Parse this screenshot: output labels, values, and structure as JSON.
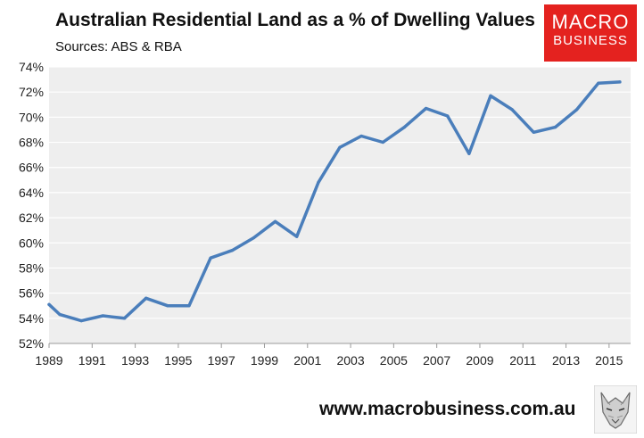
{
  "header": {
    "title": "Australian Residential Land as a % of Dwelling Values",
    "subtitle": "Sources: ABS & RBA"
  },
  "logo": {
    "line1": "MACRO",
    "line2": "BUSINESS",
    "color": "#e4221f"
  },
  "footer": {
    "url": "www.macrobusiness.com.au",
    "icon": "wolf-logo-icon"
  },
  "chart_data": {
    "type": "line",
    "title": "Australian Residential Land as a % of Dwelling Values",
    "subtitle": "Sources: ABS & RBA",
    "xlabel": "",
    "ylabel": "",
    "x": [
      1989,
      1989.5,
      1990.5,
      1991.5,
      1992.5,
      1993.5,
      1994.5,
      1995.5,
      1996.5,
      1997.5,
      1998.5,
      1999.5,
      2000.5,
      2001.5,
      2002.5,
      2003.5,
      2004.5,
      2005.5,
      2006.5,
      2007.5,
      2008.5,
      2009.5,
      2010.5,
      2011.5,
      2012.5,
      2013.5,
      2014.5,
      2015.5
    ],
    "series": [
      {
        "color": "#4a7ebb",
        "values": [
          55.1,
          54.3,
          53.8,
          54.2,
          54.0,
          55.6,
          55.0,
          55.0,
          58.8,
          59.4,
          60.4,
          61.7,
          60.5,
          64.8,
          67.6,
          68.5,
          68.0,
          69.2,
          70.7,
          70.1,
          67.1,
          71.7,
          70.6,
          68.8,
          69.2,
          70.6,
          72.7,
          72.8
        ]
      }
    ],
    "xlim": [
      1989,
      2016
    ],
    "ylim": [
      52,
      74
    ],
    "x_ticks": [
      "1989",
      "1991",
      "1993",
      "1995",
      "1997",
      "1999",
      "2001",
      "2003",
      "2005",
      "2007",
      "2009",
      "2011",
      "2013",
      "2015"
    ],
    "y_ticks": [
      "52%",
      "54%",
      "56%",
      "58%",
      "60%",
      "62%",
      "64%",
      "66%",
      "68%",
      "70%",
      "72%",
      "74%"
    ],
    "grid": true,
    "plot_background": "#eeeeee",
    "grid_color": "#ffffff"
  }
}
